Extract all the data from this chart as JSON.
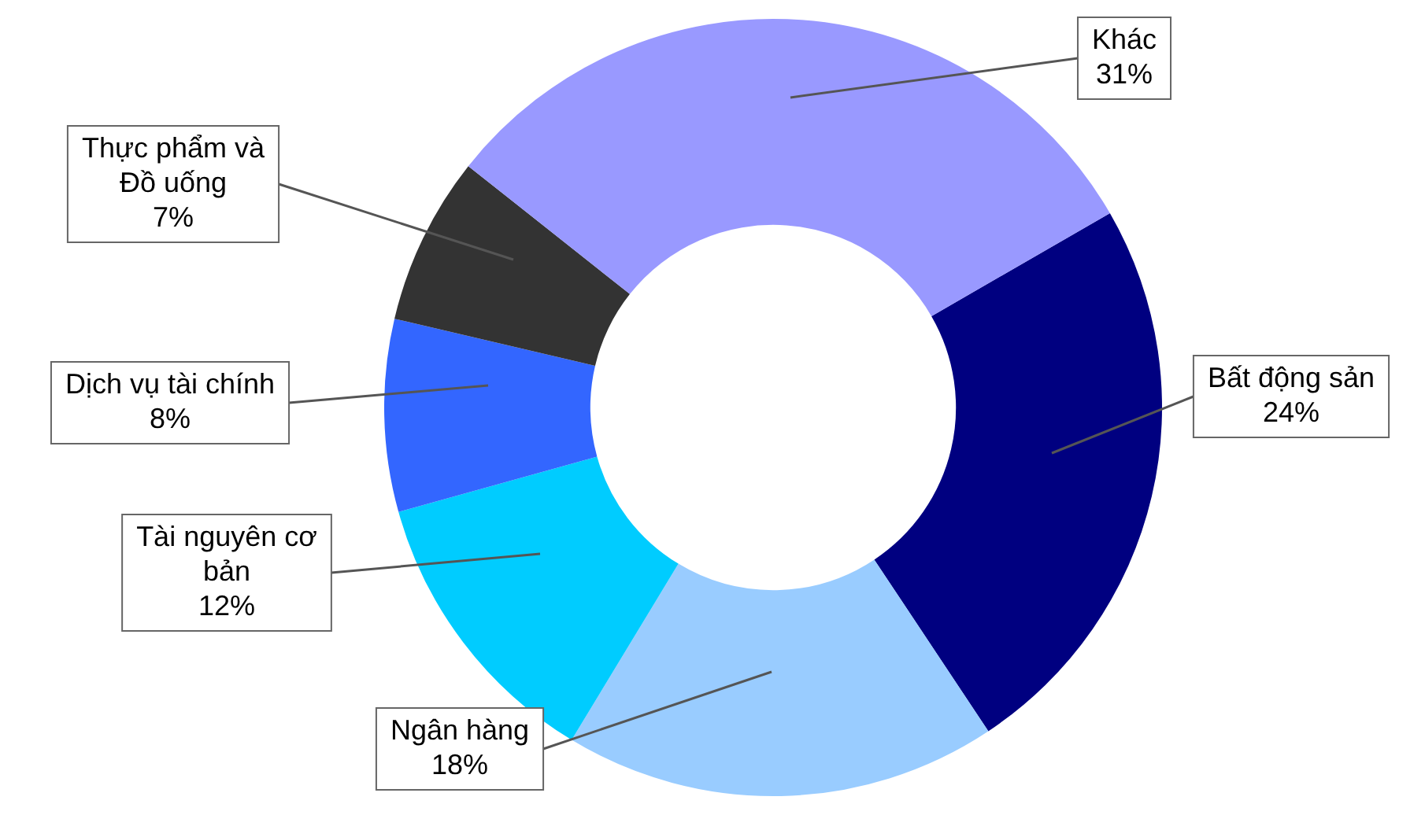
{
  "chart_data": {
    "type": "donut",
    "categories": [
      "Bất động sản",
      "Ngân hàng",
      "Tài nguyên cơ bản",
      "Dịch vụ tài chính",
      "Thực phẩm và Đồ uống",
      "Khác"
    ],
    "values": [
      24,
      18,
      12,
      8,
      7,
      31
    ],
    "colors": [
      "#000080",
      "#99ccff",
      "#00ccff",
      "#3366ff",
      "#333333",
      "#9999ff"
    ],
    "value_labels": [
      "24%",
      "18%",
      "12%",
      "8%",
      "7%",
      "31%"
    ],
    "legend": false
  }
}
